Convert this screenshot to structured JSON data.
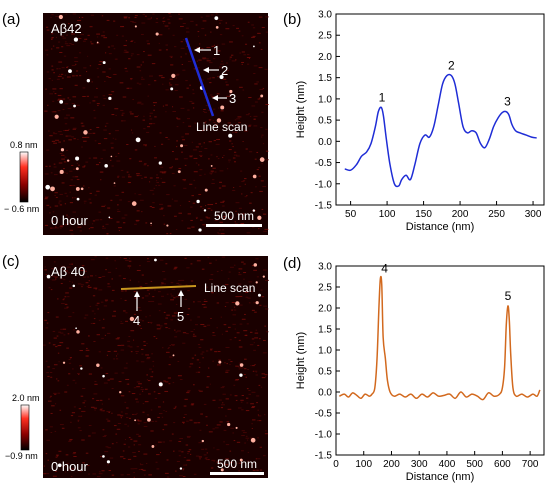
{
  "panels": {
    "a": {
      "letter": "(a)",
      "sample": "Aβ42",
      "time": "0 hour",
      "scale_bar": "500 nm",
      "colorbar_max": "0.8 nm",
      "colorbar_min": "− 0.6 nm",
      "line_scan_label": "Line scan",
      "markers": [
        "1",
        "2",
        "3"
      ],
      "line_color": "#1f2dd6"
    },
    "c": {
      "letter": "(c)",
      "sample": "Aβ 40",
      "time": "0 hour",
      "scale_bar": "500 nm",
      "colorbar_max": "2.0 nm",
      "colorbar_min": "−0.9 nm",
      "line_scan_label": "Line scan",
      "markers": [
        "4",
        "5"
      ],
      "line_color": "#b8860b"
    },
    "b_letter": "(b)",
    "d_letter": "(d)"
  },
  "colors": {
    "afm_background": "#1a0000",
    "afm_speckle": "#c0201a",
    "chart_b_line": "#1f2dd6",
    "chart_d_line": "#d2691e"
  },
  "chart_data": [
    {
      "panel": "(b)",
      "type": "line",
      "xlabel": "Distance (nm)",
      "ylabel": "Height (nm)",
      "xlim": [
        30,
        315
      ],
      "ylim": [
        -1.5,
        3.0
      ],
      "xticks": [
        50,
        100,
        150,
        200,
        250,
        300
      ],
      "yticks": [
        -1.5,
        -1.0,
        -0.5,
        0.0,
        0.5,
        1.0,
        1.5,
        2.0,
        2.5,
        3.0
      ],
      "grid": false,
      "peak_labels": [
        {
          "text": "1",
          "x": 93,
          "y": 0.8
        },
        {
          "text": "2",
          "x": 188,
          "y": 1.55
        },
        {
          "text": "3",
          "x": 265,
          "y": 0.7
        }
      ],
      "x": [
        42,
        50,
        58,
        65,
        72,
        78,
        84,
        88,
        92,
        95,
        99,
        104,
        110,
        116,
        120,
        126,
        132,
        138,
        145,
        152,
        158,
        164,
        170,
        176,
        182,
        188,
        193,
        198,
        204,
        210,
        216,
        222,
        228,
        234,
        240,
        246,
        252,
        258,
        263,
        267,
        271,
        276,
        282,
        290,
        298,
        305
      ],
      "y": [
        -0.65,
        -0.68,
        -0.55,
        -0.35,
        -0.25,
        -0.05,
        0.35,
        0.7,
        0.8,
        0.6,
        0.05,
        -0.55,
        -1.0,
        -1.05,
        -0.9,
        -0.8,
        -0.9,
        -0.55,
        -0.05,
        0.15,
        0.1,
        0.35,
        0.85,
        1.35,
        1.55,
        1.55,
        1.35,
        0.9,
        0.35,
        0.2,
        0.25,
        0.2,
        -0.05,
        -0.15,
        0.05,
        0.35,
        0.55,
        0.68,
        0.7,
        0.62,
        0.4,
        0.25,
        0.2,
        0.15,
        0.1,
        0.08
      ]
    },
    {
      "panel": "(d)",
      "type": "line",
      "xlabel": "Distance (nm)",
      "ylabel": "Height (nm)",
      "xlim": [
        0,
        750
      ],
      "ylim": [
        -1.5,
        3.0
      ],
      "xticks": [
        0,
        100,
        200,
        300,
        400,
        500,
        600,
        700
      ],
      "yticks": [
        -1.5,
        -1.0,
        -0.5,
        0.0,
        0.5,
        1.0,
        1.5,
        2.0,
        2.5,
        3.0
      ],
      "grid": false,
      "peak_labels": [
        {
          "text": "4",
          "x": 175,
          "y": 2.7
        },
        {
          "text": "5",
          "x": 620,
          "y": 2.05
        }
      ],
      "x": [
        12,
        30,
        45,
        60,
        75,
        90,
        105,
        120,
        130,
        140,
        148,
        155,
        160,
        165,
        170,
        178,
        185,
        195,
        210,
        230,
        250,
        270,
        290,
        310,
        330,
        350,
        370,
        390,
        410,
        430,
        450,
        470,
        490,
        510,
        530,
        550,
        570,
        590,
        600,
        608,
        614,
        620,
        625,
        630,
        638,
        650,
        670,
        690,
        710,
        725,
        735
      ],
      "y": [
        -0.1,
        -0.05,
        -0.12,
        -0.02,
        -0.08,
        -0.15,
        -0.05,
        -0.1,
        -0.05,
        0.1,
        0.8,
        2.05,
        2.7,
        2.55,
        1.3,
        0.8,
        0.3,
        0.0,
        -0.1,
        -0.05,
        -0.12,
        -0.05,
        -0.15,
        -0.05,
        -0.12,
        -0.02,
        -0.1,
        -0.08,
        -0.05,
        -0.15,
        0.0,
        -0.12,
        -0.05,
        -0.1,
        -0.18,
        -0.02,
        -0.1,
        -0.05,
        0.1,
        0.6,
        1.6,
        2.05,
        1.7,
        0.9,
        0.1,
        -0.1,
        -0.05,
        -0.12,
        -0.05,
        -0.1,
        0.05
      ]
    }
  ]
}
